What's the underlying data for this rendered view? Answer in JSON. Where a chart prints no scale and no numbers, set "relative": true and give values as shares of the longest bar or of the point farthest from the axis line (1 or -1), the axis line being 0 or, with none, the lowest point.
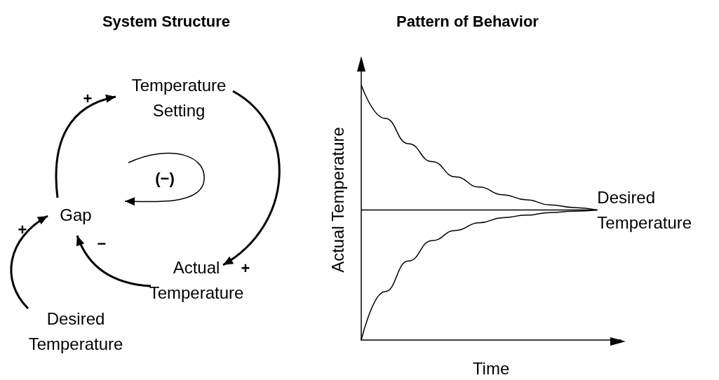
{
  "chart_data": [
    {
      "type": "other",
      "title": "System Structure",
      "annotations": [
        "Temperature Setting",
        "Gap",
        "Actual Temperature",
        "Desired Temperature",
        "+",
        "+",
        "−",
        "+",
        "(−)"
      ]
    },
    {
      "type": "line",
      "title": "Pattern of Behavior",
      "xlabel": "Time",
      "ylabel": "Actual Temperature",
      "relative": true,
      "marker": "none",
      "line_style": "solid",
      "categories": [
        null,
        null,
        null,
        null,
        null,
        null,
        null,
        null,
        null,
        null,
        null,
        null
      ],
      "series": [
        {
          "color": "#000000",
          "values": [
            1.0,
            0.87,
            0.77,
            0.7,
            0.64,
            0.6,
            0.57,
            0.55,
            0.53,
            0.52,
            0.51,
            null
          ]
        },
        {
          "name": "Desired Temperature",
          "color": "#000000",
          "values": [
            0.51,
            0.51,
            0.51,
            0.51,
            0.51,
            0.51,
            0.51,
            0.51,
            0.51,
            0.51,
            0.51,
            null
          ]
        },
        {
          "color": "#000000",
          "values": [
            0,
            0.19,
            0.31,
            0.39,
            0.43,
            0.46,
            0.48,
            0.49,
            0.5,
            0.505,
            0.51,
            null
          ]
        }
      ]
    }
  ]
}
